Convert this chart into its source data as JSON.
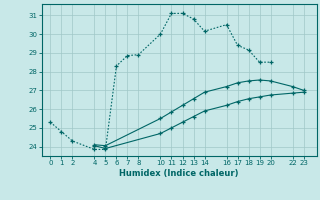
{
  "xlabel": "Humidex (Indice chaleur)",
  "bg_color": "#c8e8e8",
  "grid_color": "#a0c8c8",
  "line_color": "#006666",
  "ylim": [
    23.5,
    31.6
  ],
  "yticks": [
    24,
    25,
    26,
    27,
    28,
    29,
    30,
    31
  ],
  "xticks": [
    0,
    1,
    2,
    4,
    5,
    6,
    7,
    8,
    10,
    11,
    12,
    13,
    14,
    16,
    17,
    18,
    19,
    20,
    22,
    23
  ],
  "xlim": [
    -0.8,
    24.2
  ],
  "line1_x": [
    0,
    1,
    2,
    4,
    5,
    6,
    7,
    8,
    10,
    11,
    12,
    13,
    14,
    16,
    17,
    18,
    19,
    20
  ],
  "line1_y": [
    25.3,
    24.8,
    24.3,
    23.85,
    23.85,
    28.3,
    28.85,
    28.9,
    30.0,
    31.1,
    31.1,
    30.8,
    30.15,
    30.5,
    29.4,
    29.15,
    28.5,
    28.5
  ],
  "line2_x": [
    4,
    5,
    10,
    11,
    12,
    13,
    14,
    16,
    17,
    18,
    19,
    20,
    22,
    23
  ],
  "line2_y": [
    24.1,
    24.05,
    25.5,
    25.85,
    26.2,
    26.55,
    26.9,
    27.2,
    27.4,
    27.5,
    27.55,
    27.5,
    27.2,
    27.0
  ],
  "line3_x": [
    4,
    5,
    10,
    11,
    12,
    13,
    14,
    16,
    17,
    18,
    19,
    20,
    22,
    23
  ],
  "line3_y": [
    24.05,
    23.9,
    24.7,
    25.0,
    25.3,
    25.6,
    25.9,
    26.2,
    26.4,
    26.55,
    26.65,
    26.75,
    26.85,
    26.9
  ]
}
